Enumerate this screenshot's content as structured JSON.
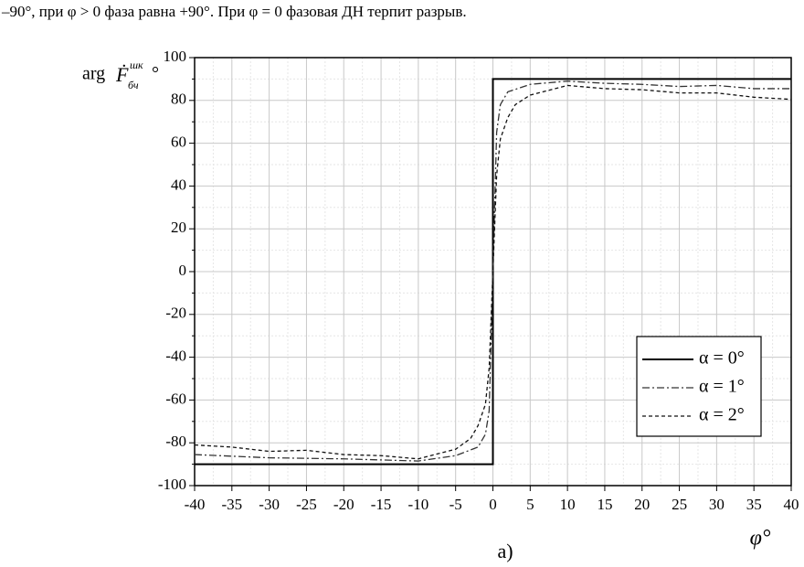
{
  "header_text": "–90°, при  φ > 0  фаза равна +90°. При  φ = 0  фазовая ДН терпит разрыв.",
  "chart_data": {
    "type": "line",
    "caption": "а)",
    "xlabel": "φ°",
    "ylabel": "arg",
    "ylabel_symbol": "Ḟ",
    "ylabel_sub": "бч",
    "ylabel_sup": "шк",
    "ylabel_unit": "°",
    "xlim": [
      -40,
      40
    ],
    "ylim": [
      -100,
      100
    ],
    "xticks": [
      -40,
      -35,
      -30,
      -25,
      -20,
      -15,
      -10,
      -5,
      0,
      5,
      10,
      15,
      20,
      25,
      30,
      35,
      40
    ],
    "yticks": [
      -100,
      -80,
      -60,
      -40,
      -20,
      0,
      20,
      40,
      60,
      80,
      100
    ],
    "grid": true,
    "minor_grid": true,
    "legend": "lower-right",
    "series": [
      {
        "name": "α = 0°",
        "color": "#000000",
        "dash": "solid",
        "x": [
          -40,
          0,
          0,
          40
        ],
        "values": [
          -90,
          -90,
          90,
          90
        ]
      },
      {
        "name": "α = 1°",
        "color": "#333333",
        "dash": "dashdot",
        "x": [
          -40,
          -30,
          -20,
          -10,
          -5,
          -2,
          -1,
          -0.5,
          0,
          0.5,
          1,
          2,
          5,
          10,
          15,
          20,
          25,
          30,
          35,
          40
        ],
        "values": [
          -85.5,
          -87,
          -87.5,
          -88.5,
          -86,
          -82,
          -76,
          -65,
          0,
          65,
          78,
          84,
          87.5,
          89,
          88,
          87.5,
          86.5,
          87,
          85.5,
          85.5
        ]
      },
      {
        "name": "α = 2°",
        "color": "#111111",
        "dash": "dashed",
        "x": [
          -40,
          -35,
          -30,
          -25,
          -20,
          -15,
          -10,
          -5,
          -3,
          -2,
          -1,
          -0.5,
          0,
          0.5,
          1,
          2,
          3,
          5,
          10,
          15,
          20,
          25,
          30,
          35,
          40
        ],
        "values": [
          -81,
          -82,
          -84,
          -83.5,
          -85.5,
          -86,
          -87.5,
          -83,
          -78,
          -72,
          -62,
          -45,
          0,
          45,
          62,
          72,
          78,
          82.5,
          87,
          85.5,
          85,
          83.5,
          83.5,
          81.5,
          80.5
        ]
      }
    ]
  }
}
